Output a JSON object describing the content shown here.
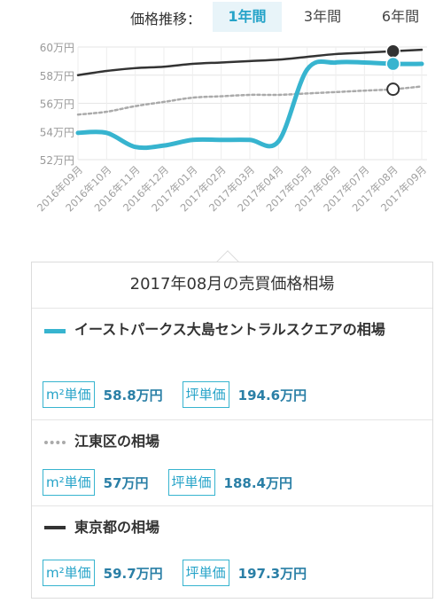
{
  "tabs": {
    "label": "価格推移：",
    "items": [
      {
        "label": "1年間",
        "active": true
      },
      {
        "label": "3年間",
        "active": false
      },
      {
        "label": "6年間",
        "active": false
      }
    ]
  },
  "chart_data": {
    "type": "line",
    "title": "",
    "xlabel": "",
    "ylabel": "",
    "y_ticks": [
      "52万円",
      "54万円",
      "56万円",
      "58万円",
      "60万円"
    ],
    "ylim": [
      52,
      60
    ],
    "grid": true,
    "x": [
      "2016年09月",
      "2016年10月",
      "2016年11月",
      "2016年12月",
      "2017年01月",
      "2017年02月",
      "2017年03月",
      "2017年04月",
      "2017年05月",
      "2017年06月",
      "2017年07月",
      "2017年08月",
      "2017年09月"
    ],
    "highlight_index": 11,
    "series": [
      {
        "name": "東京都の相場",
        "color": "#333333",
        "style": "solid",
        "values": [
          58.0,
          58.3,
          58.5,
          58.6,
          58.8,
          58.9,
          59.0,
          59.1,
          59.3,
          59.5,
          59.6,
          59.7,
          59.8
        ]
      },
      {
        "name": "江東区の相場",
        "color": "#aaaaaa",
        "style": "dotted",
        "values": [
          55.2,
          55.4,
          55.8,
          56.1,
          56.4,
          56.5,
          56.6,
          56.6,
          56.7,
          56.8,
          56.9,
          57.0,
          57.2
        ]
      },
      {
        "name": "イーストパークス大島セントラルスクエアの相場",
        "color": "#37b4cf",
        "style": "solid",
        "values": [
          53.9,
          53.9,
          52.9,
          53.0,
          53.4,
          53.4,
          53.4,
          53.3,
          58.4,
          58.9,
          58.9,
          58.8,
          58.8
        ]
      }
    ]
  },
  "panel": {
    "title": "2017年08月の売買価格相場",
    "sections": [
      {
        "name": "イーストパークス大島セントラルスクエアの相場",
        "sqm_label": "m²単価",
        "sqm_value": "58.8万円",
        "tsubo_label": "坪単価",
        "tsubo_value": "194.6万円"
      },
      {
        "name": "江東区の相場",
        "sqm_label": "m²単価",
        "sqm_value": "57万円",
        "tsubo_label": "坪単価",
        "tsubo_value": "188.4万円"
      },
      {
        "name": "東京都の相場",
        "sqm_label": "m²単価",
        "sqm_value": "59.7万円",
        "tsubo_label": "坪単価",
        "tsubo_value": "197.3万円"
      }
    ]
  }
}
